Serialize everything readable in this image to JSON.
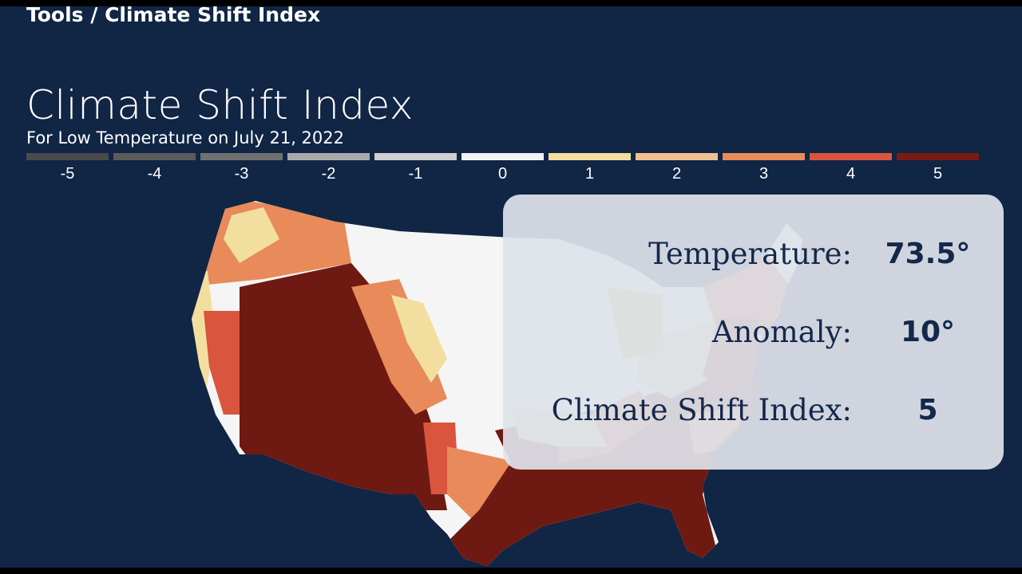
{
  "breadcrumb": "Tools / Climate Shift Index",
  "title": "Climate Shift Index",
  "subtitle": "For Low Temperature on July 21, 2022",
  "legend": [
    {
      "label": "-5",
      "color": "#4a4a4a"
    },
    {
      "label": "-4",
      "color": "#5c5c5c"
    },
    {
      "label": "-3",
      "color": "#707070"
    },
    {
      "label": "-2",
      "color": "#a9a9a9"
    },
    {
      "label": "-1",
      "color": "#cfcfcf"
    },
    {
      "label": "0",
      "color": "#f2f2f2"
    },
    {
      "label": "1",
      "color": "#f2dfa0"
    },
    {
      "label": "2",
      "color": "#f0c090"
    },
    {
      "label": "3",
      "color": "#e88a5a"
    },
    {
      "label": "4",
      "color": "#d9553d"
    },
    {
      "label": "5",
      "color": "#7a1a12"
    }
  ],
  "info_panel": {
    "temperature_label": "Temperature:",
    "temperature_value": "73.5°",
    "anomaly_label": "Anomaly:",
    "anomaly_value": "10°",
    "csi_label": "Climate Shift Index:",
    "csi_value": "5"
  }
}
